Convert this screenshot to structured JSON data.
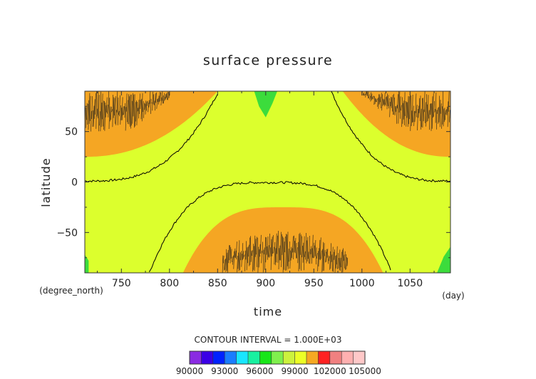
{
  "chart_data": {
    "type": "heatmap",
    "title": "surface pressure",
    "xlabel": "time",
    "ylabel": "latitude",
    "x_unit": "(day)",
    "y_unit": "(degree_north)",
    "xlim": [
      712,
      1092
    ],
    "ylim": [
      -90,
      90
    ],
    "x_ticks": [
      750,
      800,
      850,
      900,
      950,
      1000,
      1050
    ],
    "y_ticks": [
      {
        "value": 50,
        "label": "50"
      },
      {
        "value": 0,
        "label": "0"
      },
      {
        "value": -50,
        "label": "−50"
      }
    ],
    "contour_interval_text": "CONTOUR INTERVAL = 1.000E+03",
    "colorbar": {
      "levels": [
        90000,
        91000,
        92000,
        93000,
        94000,
        95000,
        96000,
        97000,
        98000,
        99000,
        100000,
        101000,
        102000,
        103000,
        104000,
        105000
      ],
      "labels": [
        "90000",
        "93000",
        "96000",
        "99000",
        "102000",
        "105000"
      ],
      "colors": [
        "#8a2be2",
        "#3b00e6",
        "#0022ff",
        "#1a7dff",
        "#19e6ff",
        "#19f0a0",
        "#19e619",
        "#80f04d",
        "#cdf23d",
        "#ecff26",
        "#f5a823",
        "#ff2222",
        "#f08080",
        "#ffb0b0",
        "#ffc8c8"
      ]
    },
    "fill_colors": {
      "band_1000_101000": "#dcff2d",
      "band_101000_102000": "#f5a623",
      "low_green": "#3cdc3c",
      "contour_line": "#000000"
    },
    "regions": [
      {
        "level": "101000-102000",
        "location": "north polar",
        "x_range": [
          712,
          850
        ],
        "lat_min_at_start": 25
      },
      {
        "level": "101000-102000",
        "location": "north polar",
        "x_range": [
          980,
          1092
        ],
        "lat_min_at_end": 25
      },
      {
        "level": "101000-102000",
        "location": "south polar",
        "x_range": [
          815,
          1020
        ],
        "lat_max_peak": -25
      },
      {
        "level": "101000",
        "type": "contour",
        "location": "north",
        "x_range": [
          712,
          850
        ]
      },
      {
        "level": "101000",
        "type": "contour",
        "location": "north",
        "x_range": [
          970,
          1092
        ]
      },
      {
        "level": "101000",
        "type": "contour",
        "location": "south",
        "x_range": [
          780,
          1040
        ]
      }
    ]
  }
}
